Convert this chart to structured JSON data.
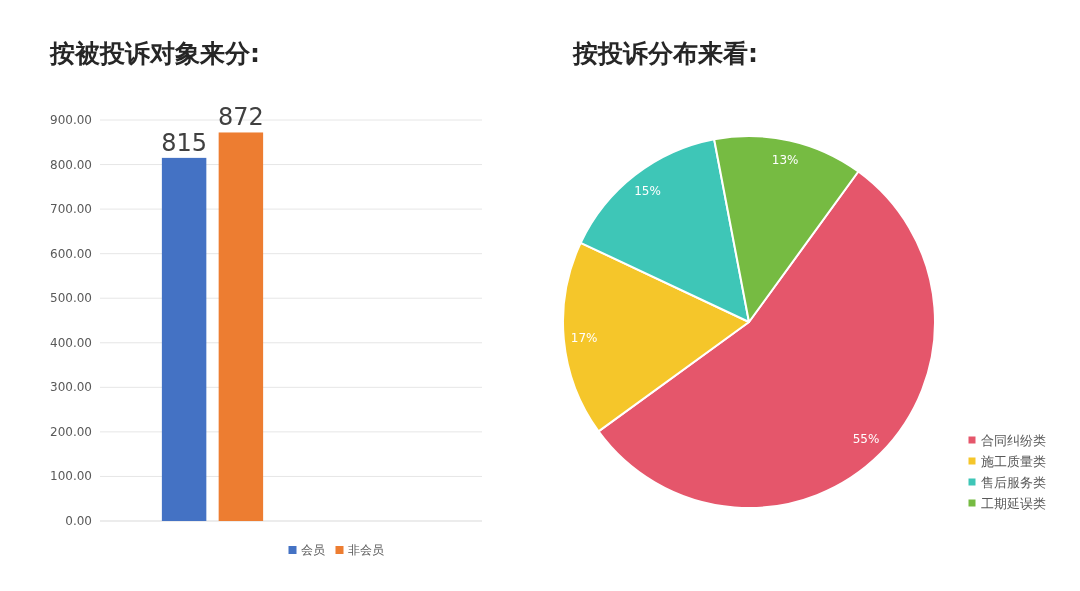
{
  "chart_data": [
    {
      "type": "bar",
      "title": "按被投诉对象来分:",
      "categories": [
        null
      ],
      "series": [
        {
          "name": "会员",
          "color": "#4472c4",
          "values": [
            815
          ]
        },
        {
          "name": "非会员",
          "color": "#ed7d31",
          "values": [
            872
          ]
        }
      ],
      "ylim": [
        0,
        900
      ],
      "yticks": [
        {
          "value": 0,
          "label": "0.00"
        },
        {
          "value": 100,
          "label": "100.00"
        },
        {
          "value": 200,
          "label": "200.00"
        },
        {
          "value": 300,
          "label": "300.00"
        },
        {
          "value": 400,
          "label": "400.00"
        },
        {
          "value": 500,
          "label": "500.00"
        },
        {
          "value": 600,
          "label": "600.00"
        },
        {
          "value": 700,
          "label": "700.00"
        },
        {
          "value": 800,
          "label": "800.00"
        },
        {
          "value": 900,
          "label": "900.00"
        }
      ],
      "grid": "y",
      "legend": "bottom",
      "data_labels": true
    },
    {
      "type": "pie",
      "title": "按投诉分布来看:",
      "categories": [
        "合同纠纷类",
        "施工质量类",
        "售后服务类",
        "工期延误类"
      ],
      "values": [
        55,
        17,
        15,
        13
      ],
      "colors": [
        "#e5566b",
        "#f5c62a",
        "#3ec6b7",
        "#76bb42"
      ],
      "value_labels": [
        "55%",
        "17%",
        "15%",
        "13%"
      ],
      "legend": "bottom right"
    }
  ]
}
